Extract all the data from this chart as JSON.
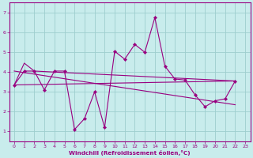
{
  "xlabel": "Windchill (Refroidissement éolien,°C)",
  "xlim": [
    -0.5,
    23.5
  ],
  "ylim": [
    0.5,
    7.5
  ],
  "xticks": [
    0,
    1,
    2,
    3,
    4,
    5,
    6,
    7,
    8,
    9,
    10,
    11,
    12,
    13,
    14,
    15,
    16,
    17,
    18,
    19,
    20,
    21,
    22,
    23
  ],
  "yticks": [
    1,
    2,
    3,
    4,
    5,
    6,
    7
  ],
  "bg_color": "#c8ecec",
  "line_color": "#990080",
  "grid_color": "#9ecece",
  "line1_x": [
    0,
    1,
    2,
    3,
    4,
    5,
    6,
    7,
    8,
    9,
    10,
    11,
    12,
    13,
    14,
    15,
    16,
    17,
    18,
    19,
    20,
    21,
    22
  ],
  "line1_y": [
    3.35,
    4.05,
    4.05,
    3.1,
    4.05,
    4.05,
    1.1,
    1.65,
    3.0,
    1.2,
    5.05,
    4.65,
    5.4,
    5.0,
    6.75,
    4.3,
    3.65,
    3.6,
    2.85,
    2.25,
    2.55,
    2.65,
    3.55
  ],
  "line2_x": [
    0,
    1,
    2,
    22
  ],
  "line2_y": [
    3.35,
    4.45,
    4.05,
    3.55
  ],
  "line3_x": [
    0,
    22
  ],
  "line3_y": [
    4.05,
    2.35
  ],
  "line4_x": [
    0,
    22
  ],
  "line4_y": [
    3.35,
    3.55
  ]
}
